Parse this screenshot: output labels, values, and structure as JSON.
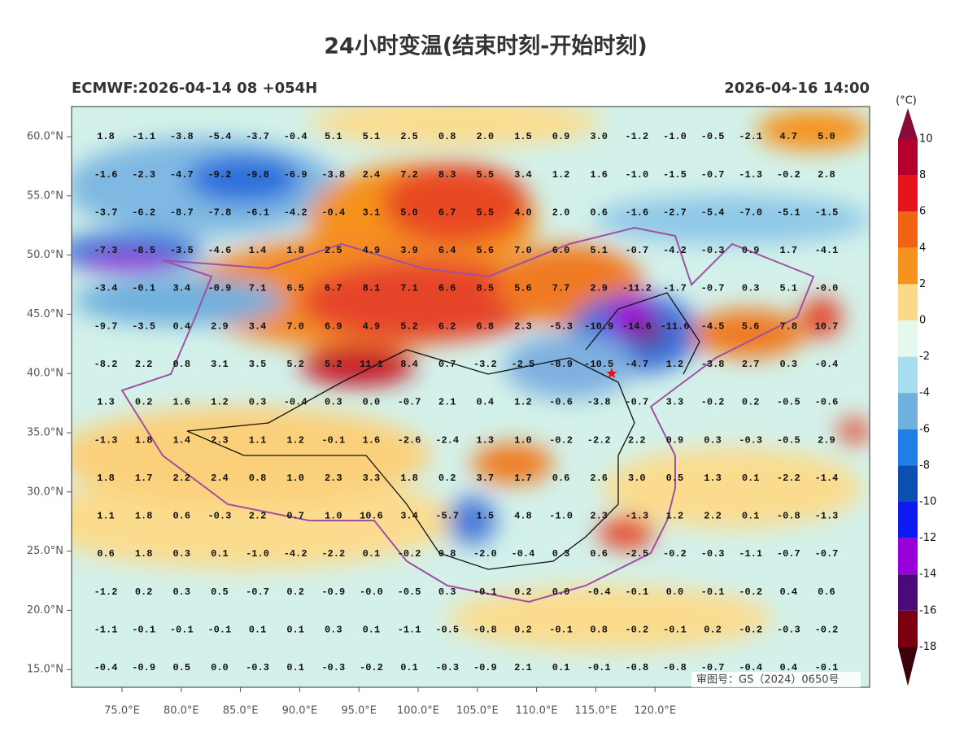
{
  "header": {
    "title": "24小时变温(结束时刻-开始时刻)",
    "left": "ECMWF:2026-04-14 08 +054H",
    "right": "2026-04-16 14:00"
  },
  "lat_labels": [
    "60.0°N",
    "55.0°N",
    "50.0°N",
    "45.0°N",
    "40.0°N",
    "35.0°N",
    "30.0°N",
    "25.0°N",
    "20.0°N",
    "15.0°N"
  ],
  "lon_labels": [
    "75.0°E",
    "80.0°E",
    "85.0°E",
    "90.0°E",
    "95.0°E",
    "100.0°E",
    "105.0°E",
    "110.0°E",
    "115.0°E",
    "120.0°E"
  ],
  "colorbar": {
    "unit": "(°C)",
    "labels": [
      "10",
      "8",
      "6",
      "4",
      "2",
      "0",
      "-2",
      "-4",
      "-6",
      "-8",
      "-10",
      "-12",
      "-14",
      "-16",
      "-18"
    ]
  },
  "grid": [
    [
      "1.8",
      "-1.1",
      "-3.8",
      "-5.4",
      "-3.7",
      "-0.4",
      "5.1",
      "5.1",
      "2.5",
      "0.8",
      "2.0",
      "1.5",
      "0.9",
      "3.0",
      "-1.2",
      "-1.0",
      "-0.5",
      "-2.1",
      "4.7",
      "5.0"
    ],
    [
      "-1.6",
      "-2.3",
      "-4.7",
      "-9.2",
      "-9.8",
      "-6.9",
      "-3.8",
      "2.4",
      "7.2",
      "8.3",
      "5.5",
      "3.4",
      "1.2",
      "1.6",
      "-1.0",
      "-1.5",
      "-0.7",
      "-1.3",
      "-0.2",
      "2.8"
    ],
    [
      "-3.7",
      "-6.2",
      "-8.7",
      "-7.8",
      "-6.1",
      "-4.2",
      "-0.4",
      "3.1",
      "5.0",
      "6.7",
      "5.5",
      "4.0",
      "2.0",
      "0.6",
      "-1.6",
      "-2.7",
      "-5.4",
      "-7.0",
      "-5.1",
      "-1.5"
    ],
    [
      "-7.3",
      "-8.5",
      "-3.5",
      "-4.6",
      "1.4",
      "1.8",
      "2.5",
      "4.9",
      "3.9",
      "6.4",
      "5.6",
      "7.0",
      "6.0",
      "5.1",
      "-0.7",
      "-4.2",
      "-0.3",
      "0.9",
      "1.7",
      "-4.1"
    ],
    [
      "-3.4",
      "-0.1",
      "3.4",
      "-0.9",
      "7.1",
      "6.5",
      "6.7",
      "8.1",
      "7.1",
      "6.6",
      "8.5",
      "5.6",
      "7.7",
      "2.9",
      "-11.2",
      "-1.7",
      "-0.7",
      "0.3",
      "5.1",
      "-0.0"
    ],
    [
      "-9.7",
      "-3.5",
      "0.4",
      "2.9",
      "3.4",
      "7.0",
      "6.9",
      "4.9",
      "5.2",
      "6.2",
      "6.8",
      "2.3",
      "-5.3",
      "-10.9",
      "-14.6",
      "-11.6",
      "-4.5",
      "5.6",
      "7.8",
      "10.7"
    ],
    [
      "-8.2",
      "2.2",
      "0.8",
      "3.1",
      "3.5",
      "5.2",
      "5.2",
      "11.1",
      "8.4",
      "0.7",
      "-3.2",
      "-2.5",
      "-8.9",
      "-10.5",
      "-4.7",
      "1.2",
      "-3.8",
      "2.7",
      "0.3",
      "-0.4"
    ],
    [
      "1.3",
      "0.2",
      "1.6",
      "1.2",
      "0.3",
      "-0.4",
      "0.3",
      "0.0",
      "-0.7",
      "2.1",
      "0.4",
      "1.2",
      "-0.6",
      "-3.8",
      "-0.7",
      "3.3",
      "-0.2",
      "0.2",
      "-0.5",
      "-0.6"
    ],
    [
      "-1.3",
      "1.8",
      "1.4",
      "2.3",
      "1.1",
      "1.2",
      "-0.1",
      "1.6",
      "-2.6",
      "-2.4",
      "1.3",
      "1.0",
      "-0.2",
      "-2.2",
      "2.2",
      "0.9",
      "0.3",
      "-0.3",
      "-0.5",
      "2.9"
    ],
    [
      "1.8",
      "1.7",
      "2.2",
      "2.4",
      "0.8",
      "1.0",
      "2.3",
      "3.3",
      "1.8",
      "0.2",
      "3.7",
      "1.7",
      "0.6",
      "2.6",
      "3.0",
      "0.5",
      "1.3",
      "0.1",
      "-2.2",
      "-1.4"
    ],
    [
      "1.1",
      "1.8",
      "0.6",
      "-0.3",
      "2.2",
      "0.7",
      "1.0",
      "10.6",
      "3.4",
      "-5.7",
      "1.5",
      "4.8",
      "-1.0",
      "2.3",
      "-1.3",
      "1.2",
      "2.2",
      "0.1",
      "-0.8",
      "-1.3"
    ],
    [
      "0.6",
      "1.8",
      "0.3",
      "0.1",
      "-1.0",
      "-4.2",
      "-2.2",
      "0.1",
      "-0.2",
      "0.8",
      "-2.0",
      "-0.4",
      "0.3",
      "0.6",
      "-2.5",
      "-0.2",
      "-0.3",
      "-1.1",
      "-0.7",
      "-0.7"
    ],
    [
      "-1.2",
      "0.2",
      "0.3",
      "0.5",
      "-0.7",
      "0.2",
      "-0.9",
      "-0.0",
      "-0.5",
      "0.3",
      "-0.1",
      "0.2",
      "0.0",
      "-0.4",
      "-0.1",
      "0.0",
      "-0.1",
      "-0.2",
      "0.4",
      "0.6"
    ],
    [
      "-1.1",
      "-0.1",
      "-0.1",
      "-0.1",
      "0.1",
      "0.1",
      "0.3",
      "0.1",
      "-1.1",
      "-0.5",
      "-0.8",
      "0.2",
      "-0.1",
      "0.8",
      "-0.2",
      "-0.1",
      "0.2",
      "-0.2",
      "-0.3",
      "-0.2"
    ],
    [
      "-0.4",
      "-0.9",
      "0.5",
      "0.0",
      "-0.3",
      "0.1",
      "-0.3",
      "-0.2",
      "0.1",
      "-0.3",
      "-0.9",
      "2.1",
      "0.1",
      "-0.1",
      "-0.8",
      "-0.8",
      "-0.7",
      "-0.4",
      "0.4",
      "-0.1"
    ]
  ],
  "footer": {
    "approval": "审图号：GS（2024）0650号"
  }
}
